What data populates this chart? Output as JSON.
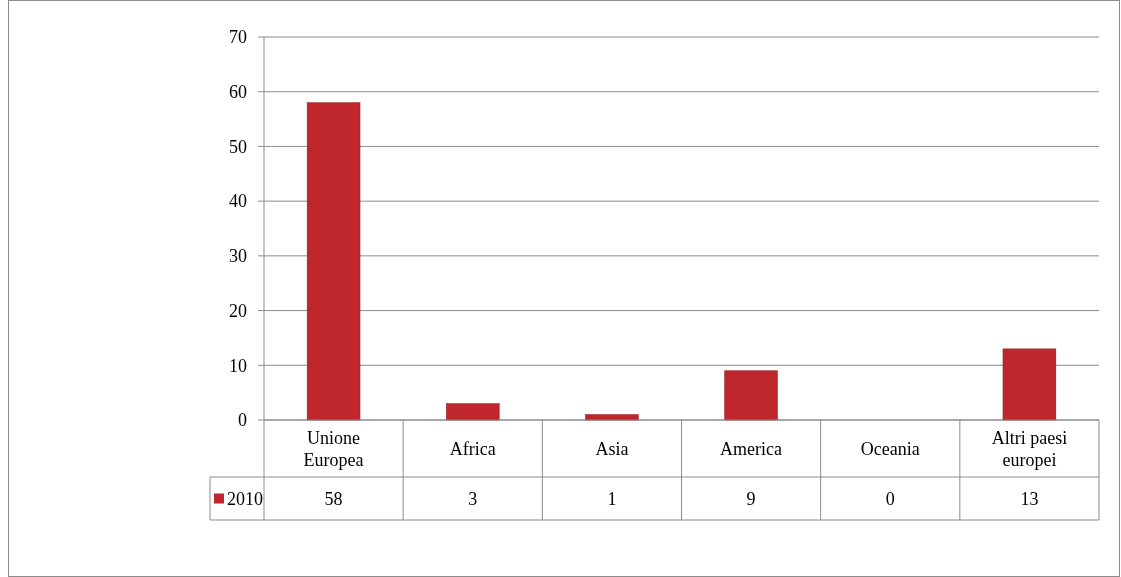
{
  "chart_data": {
    "type": "bar",
    "categories": [
      "Unione Europea",
      "Africa",
      "Asia",
      "America",
      "Oceania",
      "Altri paesi europei"
    ],
    "series": [
      {
        "name": "2010",
        "color": "#c0272d",
        "values": [
          58,
          3,
          1,
          9,
          0,
          13
        ]
      }
    ],
    "ylim": [
      0,
      70
    ],
    "yticks": [
      0,
      10,
      20,
      30,
      40,
      50,
      60,
      70
    ],
    "grid": "y",
    "legend": "bottom",
    "data_labels": true
  }
}
